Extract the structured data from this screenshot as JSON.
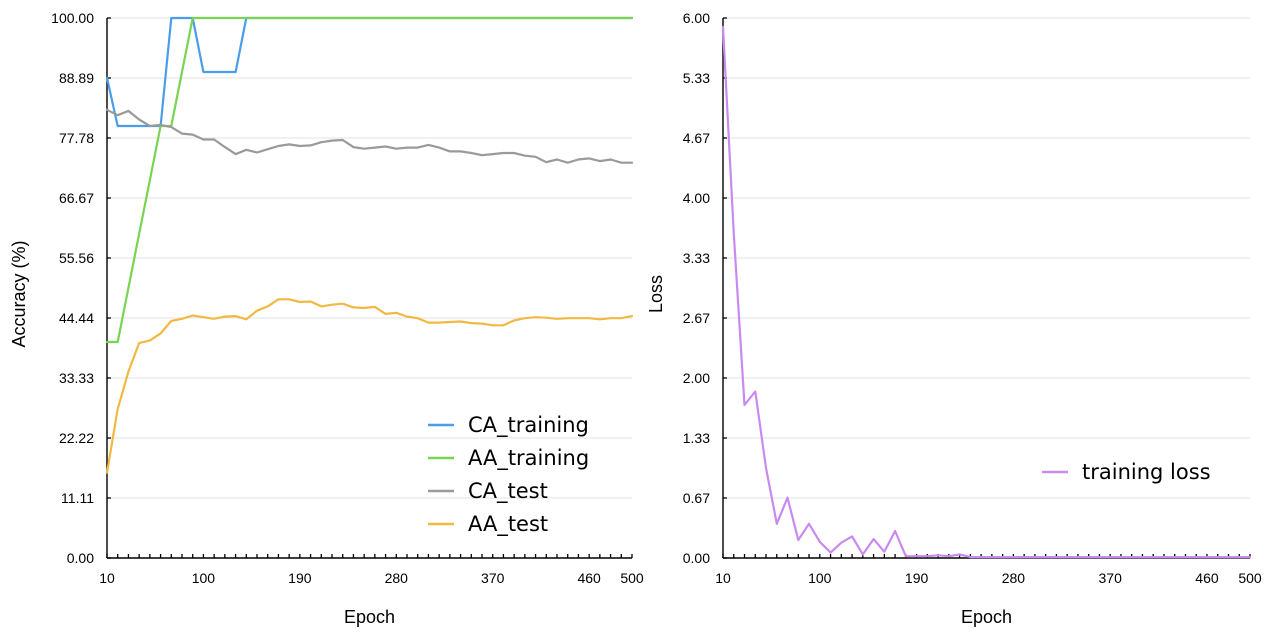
{
  "chart_data": [
    {
      "type": "line",
      "xlabel": "Epoch",
      "ylabel": "Accuracy (%)",
      "xlim": [
        10,
        500
      ],
      "ylim": [
        0,
        100
      ],
      "xtick_labels": [
        "10",
        "100",
        "190",
        "280",
        "370",
        "460",
        "500"
      ],
      "ytick_labels": [
        "0.00",
        "11.11",
        "22.22",
        "33.33",
        "44.44",
        "55.56",
        "66.67",
        "77.78",
        "88.89",
        "100.00"
      ],
      "grid": true,
      "legend_position": "bottom-right",
      "x": [
        10,
        20,
        30,
        40,
        50,
        60,
        70,
        80,
        90,
        100,
        110,
        120,
        130,
        140,
        150,
        160,
        170,
        180,
        190,
        200,
        210,
        220,
        230,
        240,
        250,
        260,
        270,
        280,
        290,
        300,
        310,
        320,
        330,
        340,
        350,
        360,
        370,
        380,
        390,
        400,
        410,
        420,
        430,
        440,
        450,
        460,
        470,
        480,
        490,
        500
      ],
      "series": [
        {
          "name": "CA_training",
          "color": "#4a9de8",
          "values": [
            88.9,
            80,
            80,
            80,
            80,
            80,
            100,
            100,
            100,
            90,
            90,
            90,
            90,
            100,
            100,
            100,
            100,
            100,
            100,
            100,
            100,
            100,
            100,
            100,
            100,
            100,
            100,
            100,
            100,
            100,
            100,
            100,
            100,
            100,
            100,
            100,
            100,
            100,
            100,
            100,
            100,
            100,
            100,
            100,
            100,
            100,
            100,
            100,
            100,
            100
          ]
        },
        {
          "name": "AA_training",
          "color": "#79d451",
          "values": [
            40,
            40,
            50,
            60,
            70,
            80,
            80,
            90,
            100,
            100,
            100,
            100,
            100,
            100,
            100,
            100,
            100,
            100,
            100,
            100,
            100,
            100,
            100,
            100,
            100,
            100,
            100,
            100,
            100,
            100,
            100,
            100,
            100,
            100,
            100,
            100,
            100,
            100,
            100,
            100,
            100,
            100,
            100,
            100,
            100,
            100,
            100,
            100,
            100,
            100
          ]
        },
        {
          "name": "CA_test",
          "color": "#9a9a9a",
          "values": [
            83.0,
            82.0,
            82.8,
            81.2,
            80.0,
            80.2,
            79.8,
            78.6,
            78.4,
            77.5,
            77.5,
            76.1,
            74.8,
            75.6,
            75.1,
            75.7,
            76.3,
            76.6,
            76.3,
            76.4,
            77.0,
            77.3,
            77.4,
            76.1,
            75.8,
            76.0,
            76.2,
            75.8,
            76.0,
            76.0,
            76.5,
            76.0,
            75.3,
            75.3,
            75.0,
            74.6,
            74.8,
            75.0,
            75.0,
            74.5,
            74.3,
            73.3,
            73.8,
            73.2,
            73.8,
            74.0,
            73.5,
            73.8,
            73.2,
            73.2
          ]
        },
        {
          "name": "AA_test",
          "color": "#f1b942",
          "values": [
            15.8,
            27.6,
            34.5,
            39.8,
            40.3,
            41.6,
            43.9,
            44.3,
            44.9,
            44.6,
            44.3,
            44.7,
            44.8,
            44.2,
            45.8,
            46.6,
            47.9,
            47.9,
            47.4,
            47.5,
            46.6,
            46.9,
            47.1,
            46.4,
            46.3,
            46.5,
            45.2,
            45.4,
            44.7,
            44.4,
            43.6,
            43.6,
            43.7,
            43.8,
            43.5,
            43.4,
            43.1,
            43.1,
            44.0,
            44.4,
            44.6,
            44.5,
            44.3,
            44.4,
            44.4,
            44.4,
            44.2,
            44.4,
            44.4,
            44.8
          ]
        }
      ]
    },
    {
      "type": "line",
      "xlabel": "Epoch",
      "ylabel": "Loss",
      "xlim": [
        10,
        500
      ],
      "ylim": [
        0,
        6
      ],
      "xtick_labels": [
        "10",
        "100",
        "190",
        "280",
        "370",
        "460",
        "500"
      ],
      "ytick_labels": [
        "0.00",
        "0.67",
        "1.33",
        "2.00",
        "2.67",
        "3.33",
        "4.00",
        "4.67",
        "5.33",
        "6.00"
      ],
      "grid": true,
      "legend_position": "right",
      "x": [
        10,
        20,
        30,
        40,
        50,
        60,
        70,
        80,
        90,
        100,
        110,
        120,
        130,
        140,
        150,
        160,
        170,
        180,
        190,
        200,
        210,
        220,
        230,
        240,
        250,
        260,
        270,
        280,
        290,
        300,
        310,
        320,
        330,
        340,
        350,
        360,
        370,
        380,
        390,
        400,
        410,
        420,
        430,
        440,
        450,
        460,
        470,
        480,
        490,
        500
      ],
      "series": [
        {
          "name": "training loss",
          "color": "#c98af0",
          "values": [
            5.9,
            3.6,
            1.7,
            1.85,
            1.0,
            0.38,
            0.67,
            0.2,
            0.38,
            0.18,
            0.06,
            0.17,
            0.24,
            0.04,
            0.21,
            0.07,
            0.3,
            0.02,
            0.02,
            0.02,
            0.03,
            0.02,
            0.04,
            0.01,
            0.01,
            0.01,
            0.01,
            0.01,
            0.01,
            0.01,
            0.01,
            0.01,
            0.01,
            0.01,
            0.01,
            0.01,
            0.01,
            0.01,
            0.01,
            0.01,
            0.01,
            0.01,
            0.01,
            0.01,
            0.01,
            0.01,
            0.01,
            0.01,
            0.01,
            0.01
          ]
        }
      ]
    }
  ]
}
